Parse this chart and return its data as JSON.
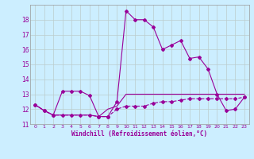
{
  "hours": [
    0,
    1,
    2,
    3,
    4,
    5,
    6,
    7,
    8,
    9,
    10,
    11,
    12,
    13,
    14,
    15,
    16,
    17,
    18,
    19,
    20,
    21,
    22,
    23
  ],
  "line1": [
    12.3,
    11.9,
    11.6,
    13.2,
    13.2,
    13.2,
    12.9,
    11.5,
    11.5,
    12.5,
    18.6,
    18.0,
    18.0,
    17.5,
    16.0,
    16.3,
    16.6,
    15.4,
    15.5,
    14.7,
    13.0,
    11.9,
    12.0,
    12.8
  ],
  "line2": [
    12.3,
    11.9,
    11.6,
    11.6,
    11.6,
    11.6,
    11.6,
    11.5,
    11.5,
    12.0,
    12.2,
    12.2,
    12.2,
    12.4,
    12.5,
    12.5,
    12.6,
    12.7,
    12.7,
    12.7,
    12.7,
    12.7,
    12.7,
    12.8
  ],
  "line3": [
    12.3,
    11.9,
    11.6,
    11.6,
    11.6,
    11.6,
    11.6,
    11.5,
    12.0,
    12.2,
    13.0,
    13.0,
    13.0,
    13.0,
    13.0,
    13.0,
    13.0,
    13.0,
    13.0,
    13.0,
    13.0,
    13.0,
    13.0,
    13.0
  ],
  "line_color": "#990099",
  "bg_color": "#cceeff",
  "grid_color": "#bbcccc",
  "xlabel": "Windchill (Refroidissement éolien,°C)",
  "ylim": [
    11,
    19.0
  ],
  "yticks": [
    11,
    12,
    13,
    14,
    15,
    16,
    17,
    18
  ],
  "xlim": [
    -0.5,
    23.5
  ],
  "xticks": [
    0,
    1,
    2,
    3,
    4,
    5,
    6,
    7,
    8,
    9,
    10,
    11,
    12,
    13,
    14,
    15,
    16,
    17,
    18,
    19,
    20,
    21,
    22,
    23
  ]
}
